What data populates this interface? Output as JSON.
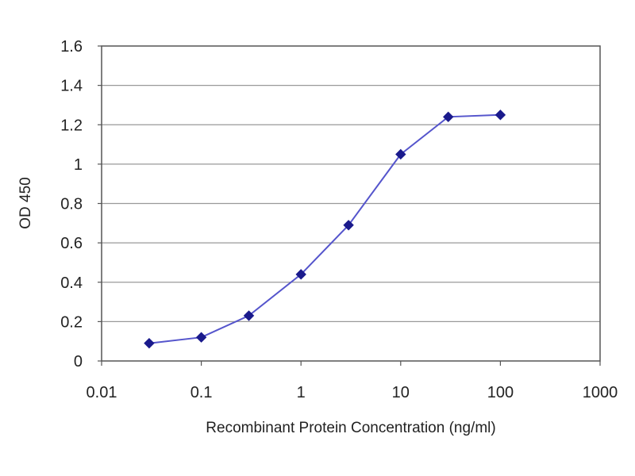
{
  "chart_data": {
    "type": "line",
    "title": "",
    "xlabel": "Recombinant Protein Concentration (ng/ml)",
    "ylabel": "OD 450",
    "x_scale": "log",
    "xlim": [
      0.01,
      1000
    ],
    "ylim": [
      0,
      1.6
    ],
    "x_ticks": [
      0.01,
      0.1,
      1,
      10,
      100,
      1000
    ],
    "x_tick_labels": [
      "0.01",
      "0.1",
      "1",
      "10",
      "100",
      "1000"
    ],
    "y_ticks": [
      0,
      0.2,
      0.4,
      0.6,
      0.8,
      1,
      1.2,
      1.4,
      1.6
    ],
    "y_tick_labels": [
      "0",
      "0.2",
      "0.4",
      "0.6",
      "0.8",
      "1",
      "1.2",
      "1.4",
      "1.6"
    ],
    "grid": "horizontal",
    "legend": "none",
    "series": [
      {
        "x": [
          0.03,
          0.1,
          0.3,
          1,
          3,
          10,
          30,
          100
        ],
        "y": [
          0.09,
          0.12,
          0.23,
          0.44,
          0.69,
          1.05,
          1.24,
          1.25
        ],
        "color": "#1a1a8c"
      }
    ],
    "colors": {
      "line": "#5555cc",
      "marker": "#1a1a8c",
      "grid": "#999999",
      "axis": "#555555"
    }
  }
}
